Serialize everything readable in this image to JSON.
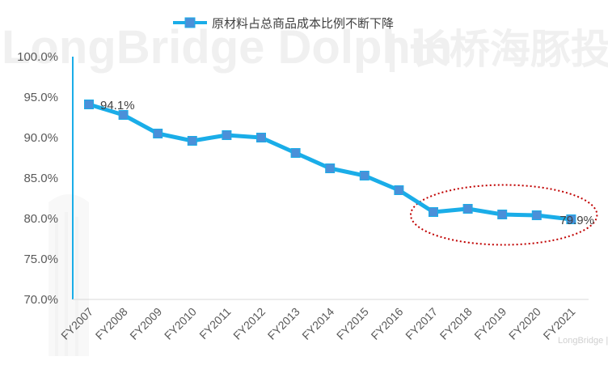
{
  "watermark": {
    "text_en": "LongBridge Dolphin",
    "text_cn": "| 长桥海豚投研",
    "corner_text": "LongBridge | 长桥"
  },
  "colors": {
    "series": "#1AADE8",
    "marker": "#4A90D9",
    "axis": "#1AADE8",
    "highlight": "#C00000",
    "text": "#595959"
  },
  "chart_data": {
    "type": "line",
    "title": "",
    "xlabel": "",
    "ylabel": "",
    "ylim": [
      0.7,
      1.0
    ],
    "yticks": [
      "100.0%",
      "95.0%",
      "90.0%",
      "85.0%",
      "80.0%",
      "75.0%",
      "70.0%"
    ],
    "ytick_values": [
      1.0,
      0.95,
      0.9,
      0.85,
      0.8,
      0.75,
      0.7
    ],
    "categories": [
      "FY2007",
      "FY2008",
      "FY2009",
      "FY2010",
      "FY2011",
      "FY2012",
      "FY2013",
      "FY2014",
      "FY2015",
      "FY2016",
      "FY2017",
      "FY2018",
      "FY2019",
      "FY2020",
      "FY2021"
    ],
    "series": [
      {
        "name": "原材料占总商品成本比例不断下降",
        "values": [
          0.941,
          0.928,
          0.905,
          0.896,
          0.903,
          0.9,
          0.881,
          0.862,
          0.853,
          0.835,
          0.808,
          0.812,
          0.805,
          0.804,
          0.799
        ]
      }
    ],
    "data_labels": [
      {
        "index": 0,
        "text": "94.1%"
      },
      {
        "index": 14,
        "text": "79.9%"
      }
    ],
    "highlight": {
      "shape": "dotted-ellipse",
      "from_index": 10,
      "to_index": 14
    },
    "legend": "top-center",
    "grid": false
  }
}
